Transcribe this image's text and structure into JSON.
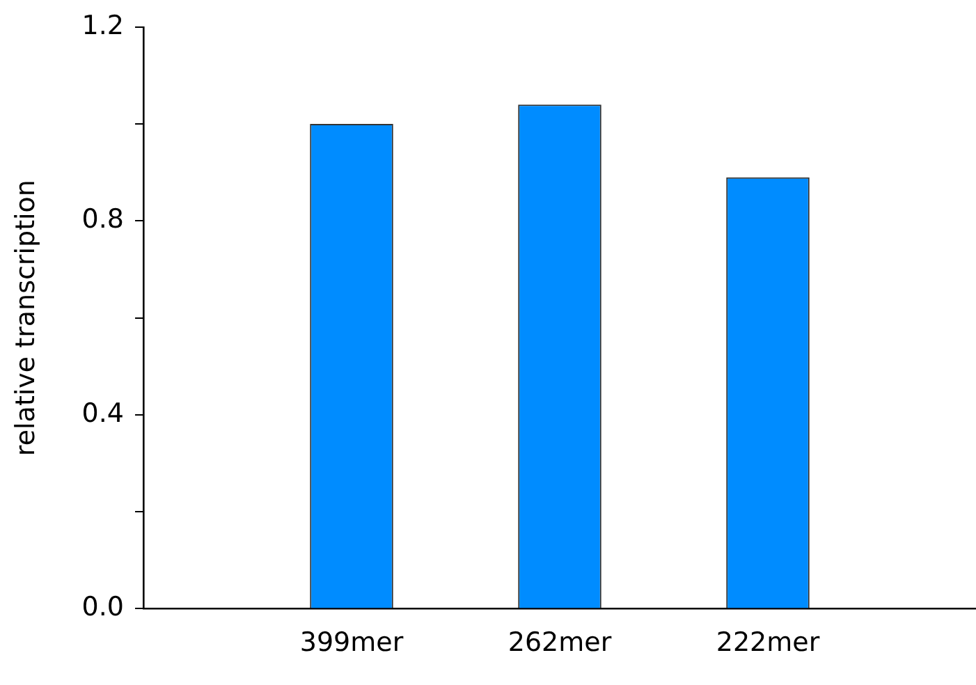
{
  "chart_data": {
    "type": "bar",
    "ylabel": "relative transcription",
    "categories": [
      "399mer",
      "262mer",
      "222mer"
    ],
    "values": [
      1.0,
      1.04,
      0.89
    ],
    "color": "#008cff",
    "ylim": [
      0,
      1.2
    ],
    "yticks": [
      {
        "value": 0,
        "label": "0.0"
      },
      {
        "value": 0.2,
        "label": null
      },
      {
        "value": 0.4,
        "label": "0.4"
      },
      {
        "value": 0.6,
        "label": null
      },
      {
        "value": 0.8,
        "label": "0.8"
      },
      {
        "value": 1.0,
        "label": null
      },
      {
        "value": 1.2,
        "label": "1.2"
      }
    ],
    "grid": false,
    "legend": false
  }
}
